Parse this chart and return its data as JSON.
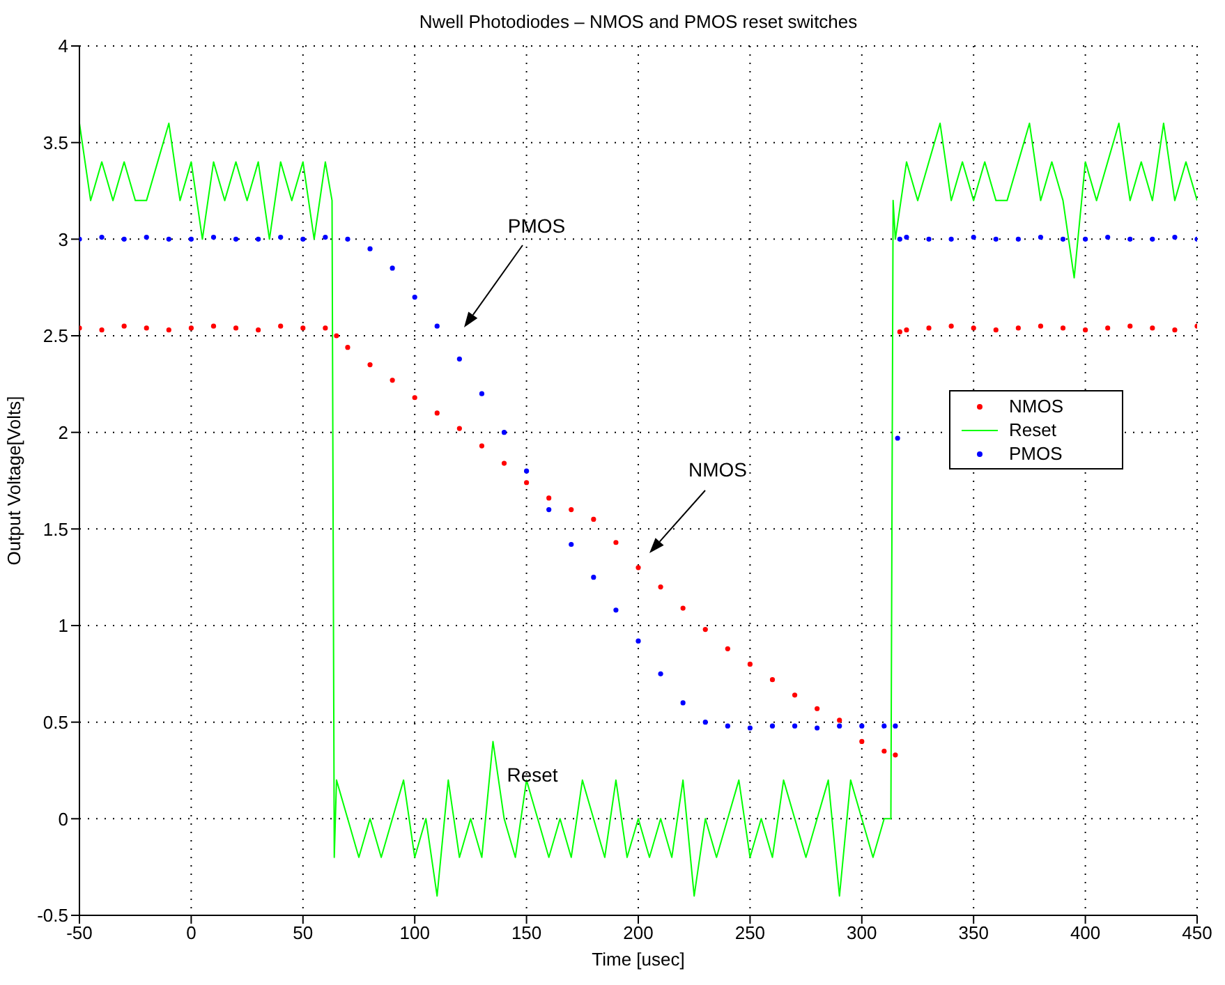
{
  "chart_data": {
    "type": "scatter",
    "title": "Nwell Photodiodes – NMOS and PMOS reset switches",
    "xlabel": "Time [usec]",
    "ylabel": "Output Voltage[Volts]",
    "xlim": [
      -50,
      450
    ],
    "xticks": [
      -50,
      0,
      50,
      100,
      150,
      200,
      250,
      300,
      350,
      400,
      450
    ],
    "ylim": [
      -0.5,
      4
    ],
    "yticks": [
      -0.5,
      0,
      0.5,
      1,
      1.5,
      2,
      2.5,
      3,
      3.5,
      4
    ],
    "grid": true,
    "legend": "right",
    "marker": "circle",
    "annotations": [
      "PMOS",
      "NMOS",
      "Reset"
    ],
    "series": [
      {
        "name": "NMOS",
        "color": "#ff0000",
        "x": [
          -50,
          -40,
          -30,
          -20,
          -10,
          0,
          10,
          20,
          30,
          40,
          50,
          60,
          65,
          70,
          80,
          90,
          100,
          110,
          120,
          130,
          140,
          150,
          160,
          170,
          180,
          190,
          200,
          210,
          220,
          230,
          240,
          250,
          260,
          270,
          280,
          290,
          300,
          310,
          315,
          317,
          320,
          330,
          340,
          350,
          360,
          370,
          380,
          390,
          400,
          410,
          420,
          430,
          440,
          450
        ],
        "values": [
          2.54,
          2.53,
          2.55,
          2.54,
          2.53,
          2.54,
          2.55,
          2.54,
          2.53,
          2.55,
          2.54,
          2.54,
          2.5,
          2.44,
          2.35,
          2.27,
          2.18,
          2.1,
          2.02,
          1.93,
          1.84,
          1.74,
          1.66,
          1.6,
          1.55,
          1.43,
          1.3,
          1.2,
          1.09,
          0.98,
          0.88,
          0.8,
          0.72,
          0.64,
          0.57,
          0.51,
          0.4,
          0.35,
          0.33,
          2.52,
          2.53,
          2.54,
          2.55,
          2.54,
          2.53,
          2.54,
          2.55,
          2.54,
          2.53,
          2.54,
          2.55,
          2.54,
          2.53,
          2.55
        ]
      },
      {
        "name": "Reset",
        "color": "#00ff00",
        "type": "line",
        "marker": "none",
        "x": [
          -50,
          -45,
          -40,
          -35,
          -30,
          -25,
          -20,
          -15,
          -10,
          -5,
          0,
          5,
          10,
          15,
          20,
          25,
          30,
          35,
          40,
          45,
          50,
          55,
          60,
          63,
          64,
          65,
          70,
          75,
          80,
          85,
          90,
          95,
          100,
          105,
          110,
          115,
          120,
          125,
          130,
          135,
          140,
          145,
          150,
          155,
          160,
          165,
          170,
          175,
          180,
          185,
          190,
          195,
          200,
          205,
          210,
          215,
          220,
          225,
          230,
          235,
          240,
          245,
          250,
          255,
          260,
          265,
          270,
          275,
          280,
          285,
          290,
          295,
          300,
          305,
          310,
          313,
          314,
          315,
          320,
          325,
          330,
          335,
          340,
          345,
          350,
          355,
          360,
          365,
          370,
          375,
          380,
          385,
          390,
          395,
          400,
          405,
          410,
          415,
          420,
          425,
          430,
          435,
          440,
          445,
          450
        ],
        "values": [
          3.6,
          3.2,
          3.4,
          3.2,
          3.4,
          3.2,
          3.2,
          3.4,
          3.6,
          3.2,
          3.4,
          3.0,
          3.4,
          3.2,
          3.4,
          3.2,
          3.4,
          3.0,
          3.4,
          3.2,
          3.4,
          3.0,
          3.4,
          3.2,
          -0.2,
          0.2,
          0,
          -0.2,
          0,
          -0.2,
          0,
          0.2,
          -0.2,
          0,
          -0.4,
          0.2,
          -0.2,
          0,
          -0.2,
          0.4,
          0,
          -0.2,
          0.2,
          0,
          -0.2,
          0,
          -0.2,
          0.2,
          0,
          -0.2,
          0.2,
          -0.2,
          0,
          -0.2,
          0,
          -0.2,
          0.2,
          -0.4,
          0,
          -0.2,
          0,
          0.2,
          -0.2,
          0,
          -0.2,
          0.2,
          0,
          -0.2,
          0,
          0.2,
          -0.4,
          0.2,
          0,
          -0.2,
          0,
          0,
          3.2,
          3.0,
          3.4,
          3.2,
          3.4,
          3.6,
          3.2,
          3.4,
          3.2,
          3.4,
          3.2,
          3.2,
          3.4,
          3.6,
          3.2,
          3.4,
          3.2,
          2.8,
          3.4,
          3.2,
          3.4,
          3.6,
          3.2,
          3.4,
          3.2,
          3.6,
          3.2,
          3.4,
          3.2
        ]
      },
      {
        "name": "PMOS",
        "color": "#0000ff",
        "x": [
          -50,
          -40,
          -30,
          -20,
          -10,
          0,
          10,
          20,
          30,
          40,
          50,
          60,
          70,
          80,
          90,
          100,
          110,
          120,
          130,
          140,
          150,
          160,
          170,
          180,
          190,
          200,
          210,
          220,
          230,
          240,
          250,
          260,
          270,
          280,
          290,
          300,
          310,
          315,
          316,
          317,
          320,
          330,
          340,
          350,
          360,
          370,
          380,
          390,
          400,
          410,
          420,
          430,
          440,
          450
        ],
        "values": [
          3.0,
          3.01,
          3.0,
          3.01,
          3.0,
          3.0,
          3.01,
          3.0,
          3.0,
          3.01,
          3.0,
          3.01,
          3.0,
          2.95,
          2.85,
          2.7,
          2.55,
          2.38,
          2.2,
          2.0,
          1.8,
          1.6,
          1.42,
          1.25,
          1.08,
          0.92,
          0.75,
          0.6,
          0.5,
          0.48,
          0.47,
          0.48,
          0.48,
          0.47,
          0.48,
          0.48,
          0.48,
          0.48,
          1.97,
          3.0,
          3.01,
          3.0,
          3.0,
          3.01,
          3.0,
          3.0,
          3.01,
          3.0,
          3.0,
          3.01,
          3.0,
          3.0,
          3.01,
          3.0
        ]
      }
    ]
  }
}
